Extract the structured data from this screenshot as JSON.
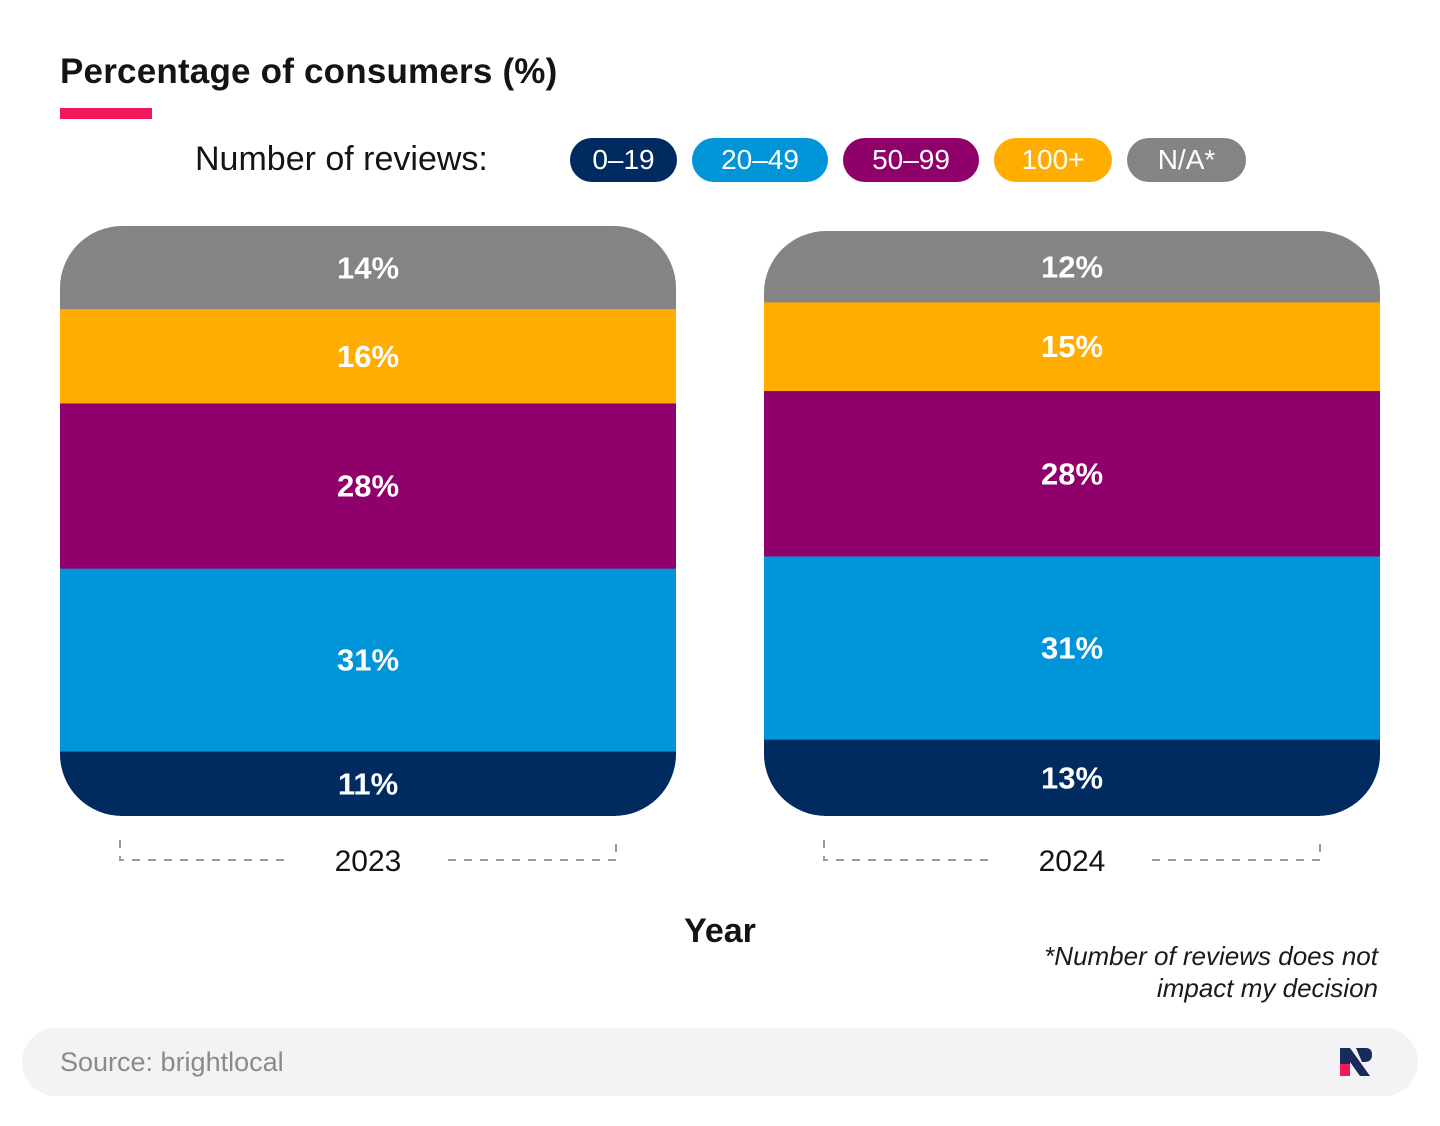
{
  "chart_data": {
    "type": "bar",
    "stacked": true,
    "title": "Percentage of consumers (%)",
    "legend_title": "Number of reviews:",
    "xlabel": "Year",
    "ylabel": "",
    "ylim": [
      0,
      100
    ],
    "categories": [
      "2023",
      "2024"
    ],
    "series": [
      {
        "name": "0–19",
        "color": "#002b60",
        "values": [
          11,
          13
        ]
      },
      {
        "name": "20–49",
        "color": "#0094d9",
        "values": [
          31,
          31
        ]
      },
      {
        "name": "50–99",
        "color": "#8f006b",
        "values": [
          28,
          28
        ]
      },
      {
        "name": "100+",
        "color": "#ffad00",
        "values": [
          16,
          15
        ]
      },
      {
        "name": "N/A*",
        "color": "#848484",
        "values": [
          14,
          12
        ]
      }
    ],
    "footnote_lines": [
      "*Number of reviews does not",
      "impact my decision"
    ]
  },
  "footer": {
    "source": "Source: brightlocal"
  },
  "colors": {
    "accent": "#f0195c",
    "footer_bg": "#f3f3f5"
  }
}
